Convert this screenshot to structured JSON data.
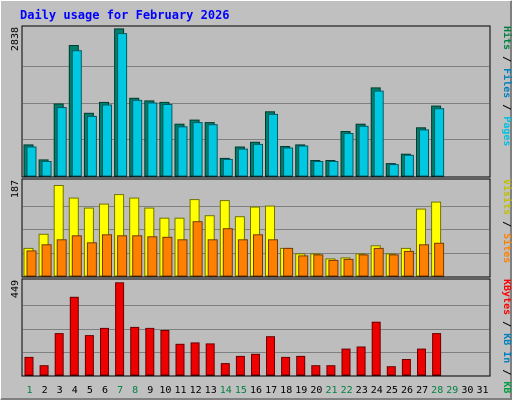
{
  "chart_data": {
    "title": "Daily usage for February 2026",
    "type": "bar",
    "x": [
      "1",
      "2",
      "3",
      "4",
      "5",
      "6",
      "7",
      "8",
      "9",
      "10",
      "11",
      "12",
      "13",
      "14",
      "15",
      "16",
      "17",
      "18",
      "19",
      "20",
      "21",
      "22",
      "23",
      "24",
      "25",
      "26",
      "27",
      "28",
      "29",
      "30",
      "31"
    ],
    "weekend_days": [
      "1",
      "7",
      "8",
      "14",
      "15",
      "21",
      "22",
      "28",
      "29"
    ],
    "panels": [
      {
        "id": "top",
        "max_label": "2838",
        "ymax": 2838,
        "right_label": [
          {
            "text": "Hits",
            "color": "#008040"
          },
          {
            "text": " / ",
            "color": "#000000"
          },
          {
            "text": "Files",
            "color": "#0080c0"
          },
          {
            "text": " / ",
            "color": "#000000"
          },
          {
            "text": "Pages",
            "color": "#00c0e0"
          }
        ],
        "series": [
          {
            "name": "Hits",
            "color": "#00806a",
            "values": [
              600,
              310,
              1390,
              2520,
              1210,
              1420,
              2840,
              1500,
              1450,
              1420,
              1000,
              1080,
              1030,
              340,
              560,
              650,
              1240,
              570,
              600,
              300,
              300,
              860,
              1000,
              1700,
              240,
              420,
              930,
              1350,
              null,
              null,
              null
            ]
          },
          {
            "name": "Files",
            "color": "#00c8e0",
            "values": [
              560,
              280,
              1320,
              2420,
              1150,
              1370,
              2750,
              1460,
              1410,
              1380,
              950,
              1030,
              990,
              320,
              520,
              610,
              1190,
              540,
              580,
              280,
              280,
              820,
              960,
              1640,
              220,
              400,
              890,
              1300,
              null,
              null,
              null
            ]
          }
        ]
      },
      {
        "id": "middle",
        "max_label": "187",
        "ymax": 187,
        "right_label": [
          {
            "text": "Visits",
            "color": "#c0c000"
          },
          {
            "text": " / ",
            "color": "#000000"
          },
          {
            "text": "Sites",
            "color": "#ff8000"
          }
        ],
        "series": [
          {
            "name": "Visits",
            "color": "#ffff00",
            "values": [
              55,
              83,
              180,
              155,
              135,
              143,
              162,
              155,
              135,
              115,
              115,
              152,
              120,
              150,
              118,
              137,
              139,
              55,
              44,
              44,
              34,
              36,
              44,
              60,
              44,
              55,
              133,
              147,
              null,
              null,
              null
            ]
          },
          {
            "name": "Sites",
            "color": "#ff8000",
            "values": [
              50,
              62,
              72,
              80,
              66,
              82,
              80,
              80,
              78,
              77,
              72,
              108,
              72,
              94,
              72,
              82,
              72,
              55,
              40,
              42,
              31,
              33,
              42,
              55,
              42,
              49,
              62,
              65,
              null,
              null,
              null
            ]
          }
        ]
      },
      {
        "id": "bottom",
        "max_label": "449",
        "ymax": 449,
        "right_label": [
          {
            "text": "KBytes",
            "color": "#ff0000"
          },
          {
            "text": " / ",
            "color": "#000000"
          },
          {
            "text": "KB In",
            "color": "#0080c0"
          },
          {
            "text": " / ",
            "color": "#000000"
          },
          {
            "text": "KB Out",
            "color": "#00a040"
          }
        ],
        "series": [
          {
            "name": "KBytes",
            "color": "#ee0000",
            "values": [
              85,
              45,
              200,
              375,
              190,
              225,
              445,
              230,
              225,
              215,
              148,
              155,
              150,
              55,
              90,
              100,
              185,
              85,
              90,
              45,
              45,
              125,
              135,
              255,
              40,
              75,
              125,
              200,
              null,
              null,
              null
            ]
          }
        ]
      }
    ]
  },
  "colors": {
    "page_background": "#ffffff",
    "frame_background": "#c0c0c0",
    "plot_background": "#bdbdbd",
    "title_color": "#0000ff",
    "weekday_label": "#000000",
    "weekend_label": "#008040"
  }
}
